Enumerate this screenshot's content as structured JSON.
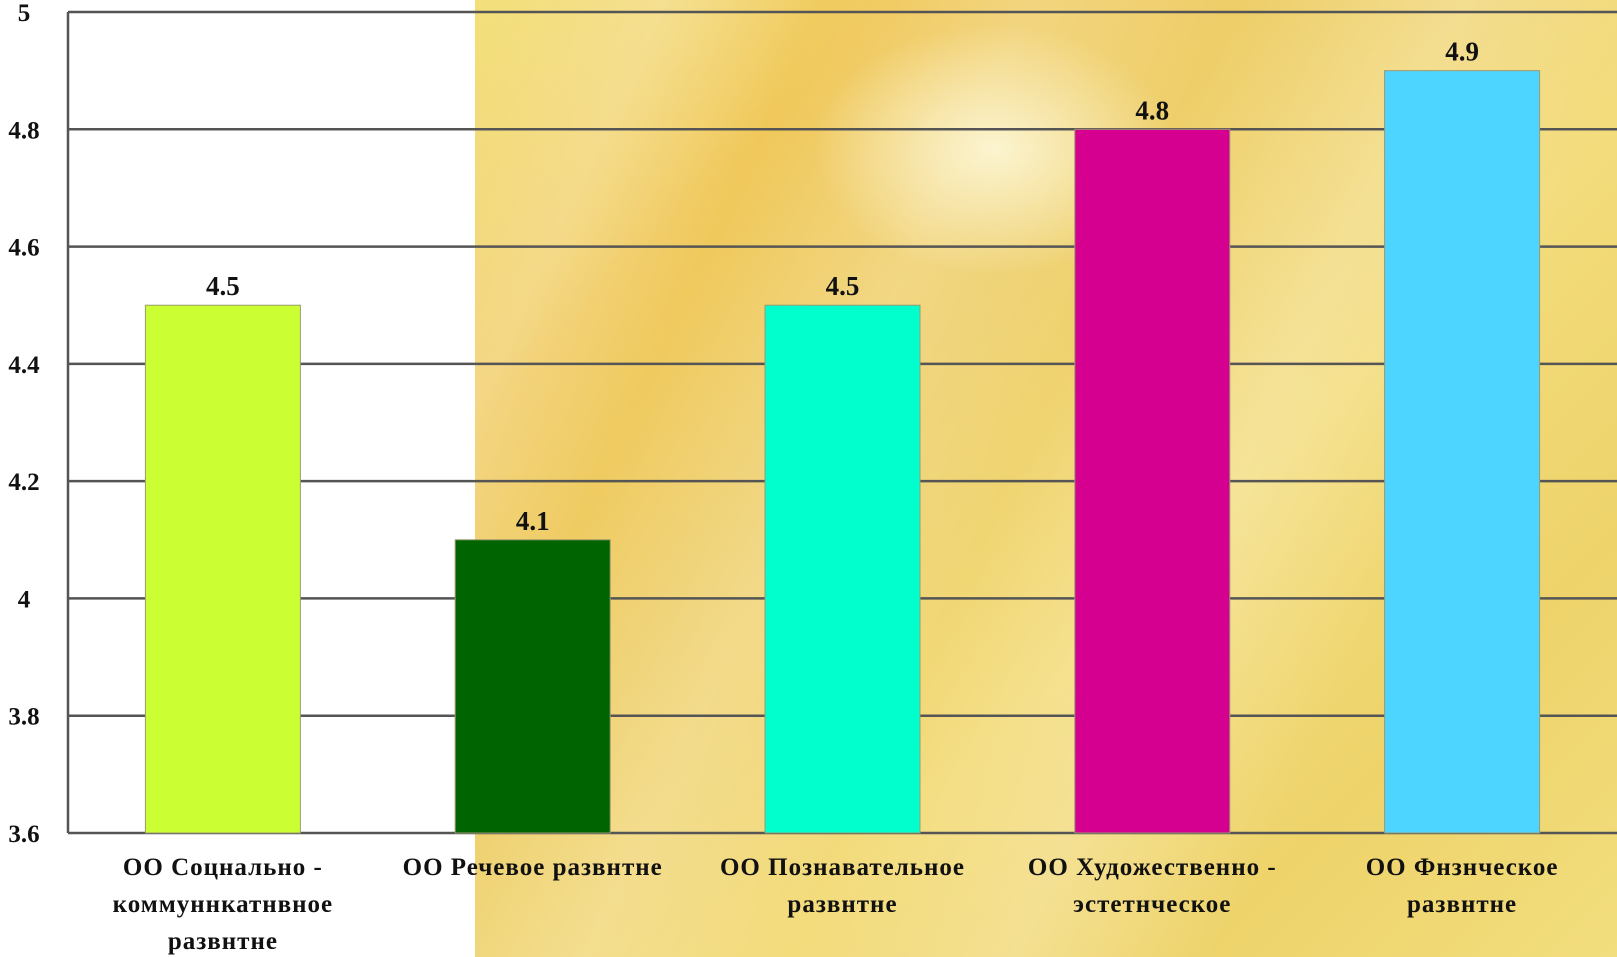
{
  "chart_data": {
    "type": "bar",
    "categories": [
      [
        "ОО Соцнально -",
        "коммуннкатнвное",
        "развнтне"
      ],
      [
        "ОО Речевое развнтне"
      ],
      [
        "ОО Познавательное",
        "развнтне"
      ],
      [
        "ОО Художественно -",
        "эстетнческое"
      ],
      [
        "ОО Фнзнческое",
        "развнтне"
      ]
    ],
    "values": [
      4.5,
      4.1,
      4.5,
      4.8,
      4.9
    ],
    "value_labels": [
      "4.5",
      "4.1",
      "4.5",
      "4.8",
      "4.9"
    ],
    "colors": [
      "#ccff33",
      "#006400",
      "#00ffcc",
      "#d5008f",
      "#4dd4ff"
    ],
    "ylim": [
      3.6,
      5
    ],
    "yticks": [
      "3.6",
      "3.8",
      "4",
      "4.2",
      "4.4",
      "4.6",
      "4.8",
      "5"
    ],
    "grid": true,
    "legend": "none"
  }
}
